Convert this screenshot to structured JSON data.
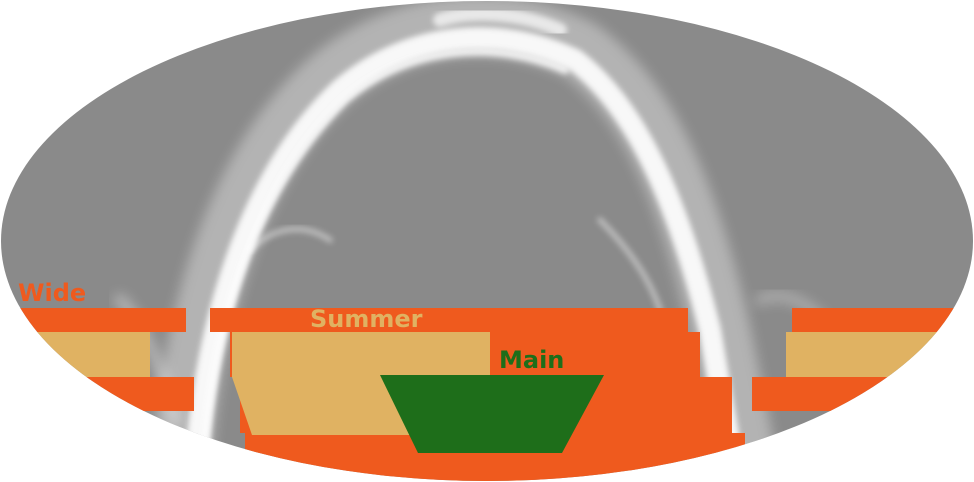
{
  "map": {
    "projection": "mollweide",
    "background_color": "#8a8a8a",
    "dust_color": "#ffffff"
  },
  "regions": {
    "wide": {
      "label": "Wide",
      "color": "#ef5a1e"
    },
    "summer": {
      "label": "Summer",
      "color": "#e0b262"
    },
    "main": {
      "label": "Main",
      "color": "#1e6e1a"
    }
  }
}
